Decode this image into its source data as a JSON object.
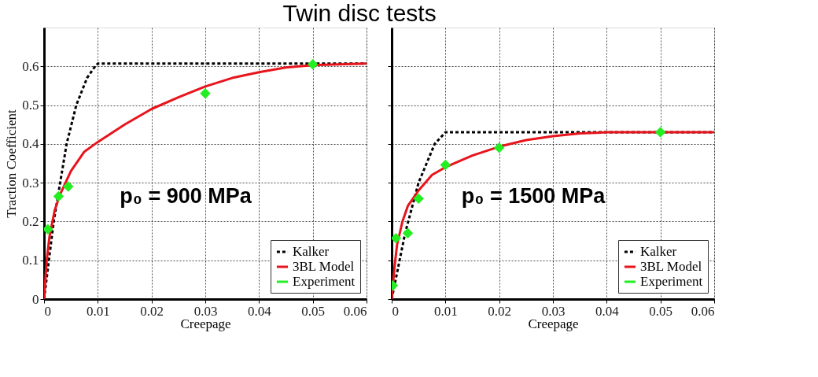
{
  "chart_data": [
    {
      "type": "line",
      "title": "Twin disc tests",
      "xlabel": "Creepage",
      "ylabel": "Traction Coefficient",
      "xlim": [
        0,
        0.06
      ],
      "xticks": [
        0,
        0.01,
        0.02,
        0.03,
        0.04,
        0.05,
        0.06
      ],
      "ylim": [
        0,
        0.7
      ],
      "yticks": [
        0,
        0.1,
        0.2,
        0.3,
        0.4,
        0.5,
        0.6
      ],
      "grid": true,
      "legend": "bottom right",
      "annotations": [
        "p₀ = 900 MPa"
      ],
      "series": [
        {
          "name": "Kalker",
          "color": "#000000",
          "line_style": "dashed",
          "x": [
            0,
            0.0018,
            0.003,
            0.0042,
            0.006,
            0.008,
            0.0095,
            0.01,
            0.06
          ],
          "values": [
            0,
            0.2,
            0.3,
            0.4,
            0.5,
            0.57,
            0.6,
            0.607,
            0.607
          ]
        },
        {
          "name": "3BL Model",
          "color": "#e8141c",
          "line_style": "solid",
          "x": [
            0,
            0.0005,
            0.001,
            0.002,
            0.003,
            0.005,
            0.0075,
            0.01,
            0.015,
            0.02,
            0.025,
            0.03,
            0.035,
            0.04,
            0.045,
            0.05,
            0.06
          ],
          "values": [
            0,
            0.1,
            0.16,
            0.23,
            0.27,
            0.33,
            0.38,
            0.405,
            0.45,
            0.49,
            0.52,
            0.548,
            0.57,
            0.585,
            0.597,
            0.603,
            0.607
          ]
        },
        {
          "name": "Experiment",
          "color": "#22ee22",
          "type": "scatter",
          "marker": "diamond",
          "x": [
            0.0007,
            0.0027,
            0.0045,
            0.03,
            0.05
          ],
          "values": [
            0.18,
            0.265,
            0.29,
            0.53,
            0.605
          ]
        }
      ]
    },
    {
      "type": "line",
      "xlabel": "Creepage",
      "xlim": [
        0,
        0.06
      ],
      "xticks": [
        0,
        0.01,
        0.02,
        0.03,
        0.04,
        0.05,
        0.06
      ],
      "ylim": [
        0,
        0.7
      ],
      "yticks": [
        0,
        0.1,
        0.2,
        0.3,
        0.4,
        0.5,
        0.6
      ],
      "tick_labels": "x",
      "grid": true,
      "legend": "bottom right",
      "annotations": [
        "p₀ = 1500 MPa"
      ],
      "series": [
        {
          "name": "Kalker",
          "color": "#000000",
          "line_style": "dashed",
          "x": [
            0,
            0.0025,
            0.005,
            0.008,
            0.01,
            0.06
          ],
          "values": [
            0,
            0.17,
            0.3,
            0.4,
            0.43,
            0.43
          ]
        },
        {
          "name": "3BL Model",
          "color": "#e8141c",
          "line_style": "solid",
          "x": [
            0,
            0.0005,
            0.001,
            0.002,
            0.003,
            0.005,
            0.0075,
            0.01,
            0.015,
            0.02,
            0.025,
            0.03,
            0.035,
            0.04,
            0.06
          ],
          "values": [
            0,
            0.08,
            0.14,
            0.2,
            0.24,
            0.28,
            0.32,
            0.34,
            0.37,
            0.393,
            0.41,
            0.42,
            0.427,
            0.43,
            0.43
          ]
        },
        {
          "name": "Experiment",
          "color": "#22ee22",
          "type": "scatter",
          "marker": "diamond",
          "x": [
            0.0002,
            0.0008,
            0.003,
            0.005,
            0.01,
            0.02,
            0.05
          ],
          "values": [
            0.035,
            0.157,
            0.17,
            0.259,
            0.346,
            0.39,
            0.43
          ]
        }
      ]
    }
  ]
}
